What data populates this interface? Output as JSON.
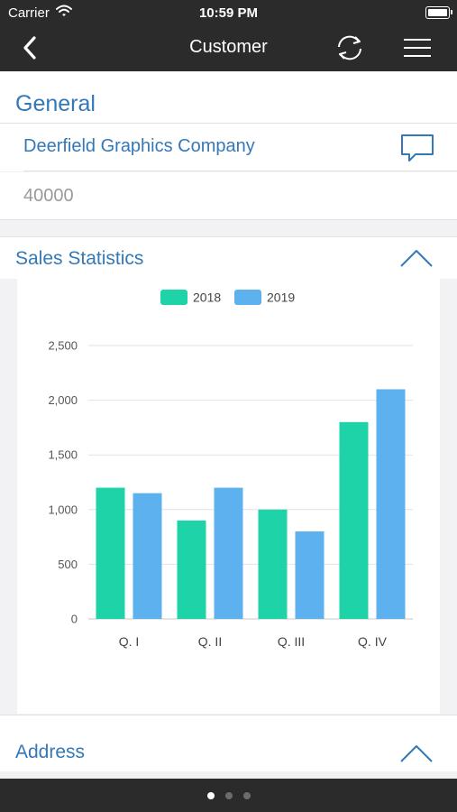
{
  "status_bar": {
    "carrier": "Carrier",
    "time": "10:59 PM"
  },
  "nav": {
    "title": "Customer"
  },
  "general": {
    "title": "General",
    "company_name": "Deerfield Graphics Company",
    "number": "40000"
  },
  "sales": {
    "title": "Sales Statistics"
  },
  "address": {
    "title": "Address"
  },
  "pager": {
    "page_count": 3,
    "active_index": 0
  },
  "colors": {
    "accent": "#3478b8",
    "series_2018": "#1dd3a7",
    "series_2019": "#5db1ee",
    "bar_dark": "#2b2b2b"
  },
  "chart_data": {
    "type": "bar",
    "categories": [
      "Q. I",
      "Q. II",
      "Q. III",
      "Q. IV"
    ],
    "series": [
      {
        "name": "2018",
        "values": [
          1200,
          900,
          1000,
          1800
        ]
      },
      {
        "name": "2019",
        "values": [
          1150,
          1200,
          800,
          2100
        ]
      }
    ],
    "y_ticks": [
      "0",
      "500",
      "1,000",
      "1,500",
      "2,000",
      "2,500"
    ],
    "ylim": [
      0,
      2500
    ],
    "grid": true,
    "legend": "top-center"
  }
}
